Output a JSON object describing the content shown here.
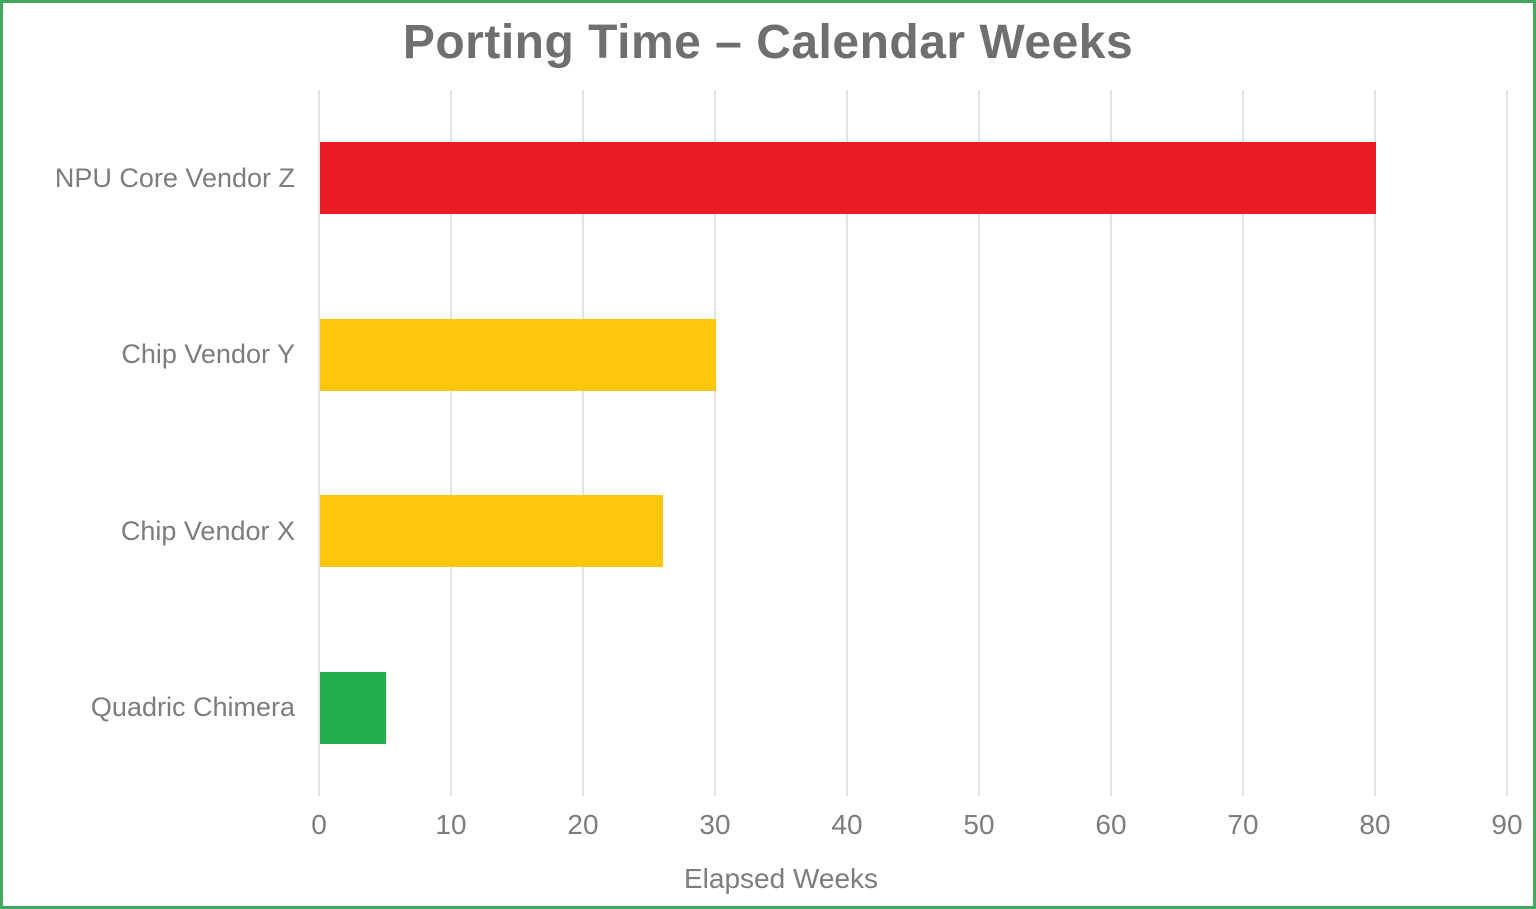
{
  "title": "Porting Time – Calendar Weeks",
  "chart_data": {
    "type": "bar",
    "orientation": "horizontal",
    "title": "Porting Time – Calendar Weeks",
    "categories": [
      "NPU Core Vendor Z",
      "Chip Vendor Y",
      "Chip Vendor X",
      "Quadric Chimera"
    ],
    "values": [
      80,
      30,
      26,
      5
    ],
    "bar_colors": [
      "#EC1C24",
      "#FFC80E",
      "#FFC80E",
      "#23AF4B"
    ],
    "xlabel": "Elapsed Weeks",
    "ylabel": "",
    "xlim": [
      0,
      90
    ],
    "xticks": [
      0,
      10,
      20,
      30,
      40,
      50,
      60,
      70,
      80,
      90
    ],
    "grid": true,
    "legend": false
  },
  "colors": {
    "frame_border": "#44A85C",
    "gridline": "#E2E2E2",
    "title_text": "#6F6F6F",
    "label_text": "#7D7D7D",
    "bar_red": "#EC1C24",
    "bar_yellow": "#FFC80E",
    "bar_green": "#23AF4B"
  }
}
